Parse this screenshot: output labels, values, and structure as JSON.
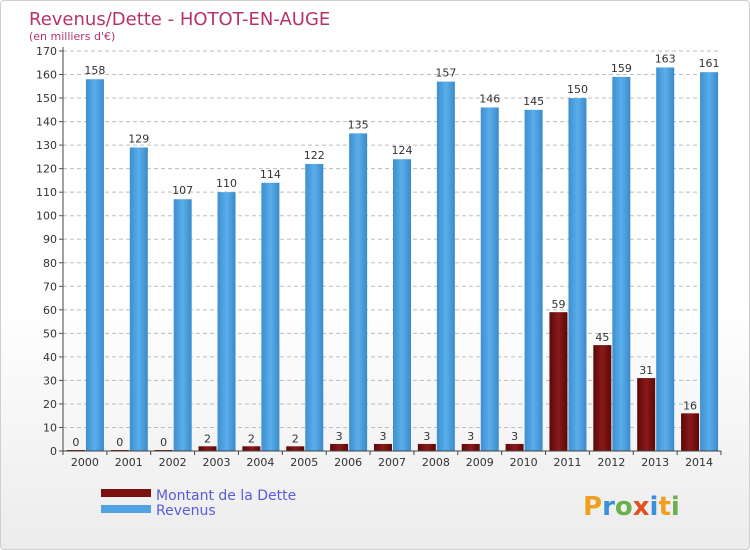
{
  "chart_data": {
    "type": "bar",
    "title": "Revenus/Dette - HOTOT-EN-AUGE",
    "subtitle": "(en milliers d'€)",
    "categories": [
      "2000",
      "2001",
      "2002",
      "2003",
      "2004",
      "2005",
      "2006",
      "2007",
      "2008",
      "2009",
      "2010",
      "2011",
      "2012",
      "2013",
      "2014"
    ],
    "series": [
      {
        "name": "Montant de la Dette",
        "color": "#7a1010",
        "values": [
          0,
          0,
          0,
          2,
          2,
          2,
          3,
          3,
          3,
          3,
          3,
          59,
          45,
          31,
          16
        ]
      },
      {
        "name": "Revenus",
        "color": "#4fa3e3",
        "values": [
          158,
          129,
          107,
          110,
          114,
          122,
          135,
          124,
          157,
          146,
          145,
          150,
          159,
          163,
          161
        ]
      }
    ],
    "yticks": [
      0,
      10,
      20,
      30,
      40,
      50,
      60,
      70,
      80,
      90,
      100,
      110,
      120,
      130,
      140,
      150,
      160,
      170
    ],
    "ylim": [
      0,
      170
    ],
    "grid": true,
    "legend_position": "bottom-left"
  },
  "logo": {
    "letters": [
      "P",
      "r",
      "o",
      "x",
      "i",
      "t",
      "i"
    ],
    "colors": [
      "#f0a020",
      "#3a8fd8",
      "#6ab04c",
      "#e05020",
      "#3a8fd8",
      "#f0a020",
      "#6ab04c"
    ]
  }
}
